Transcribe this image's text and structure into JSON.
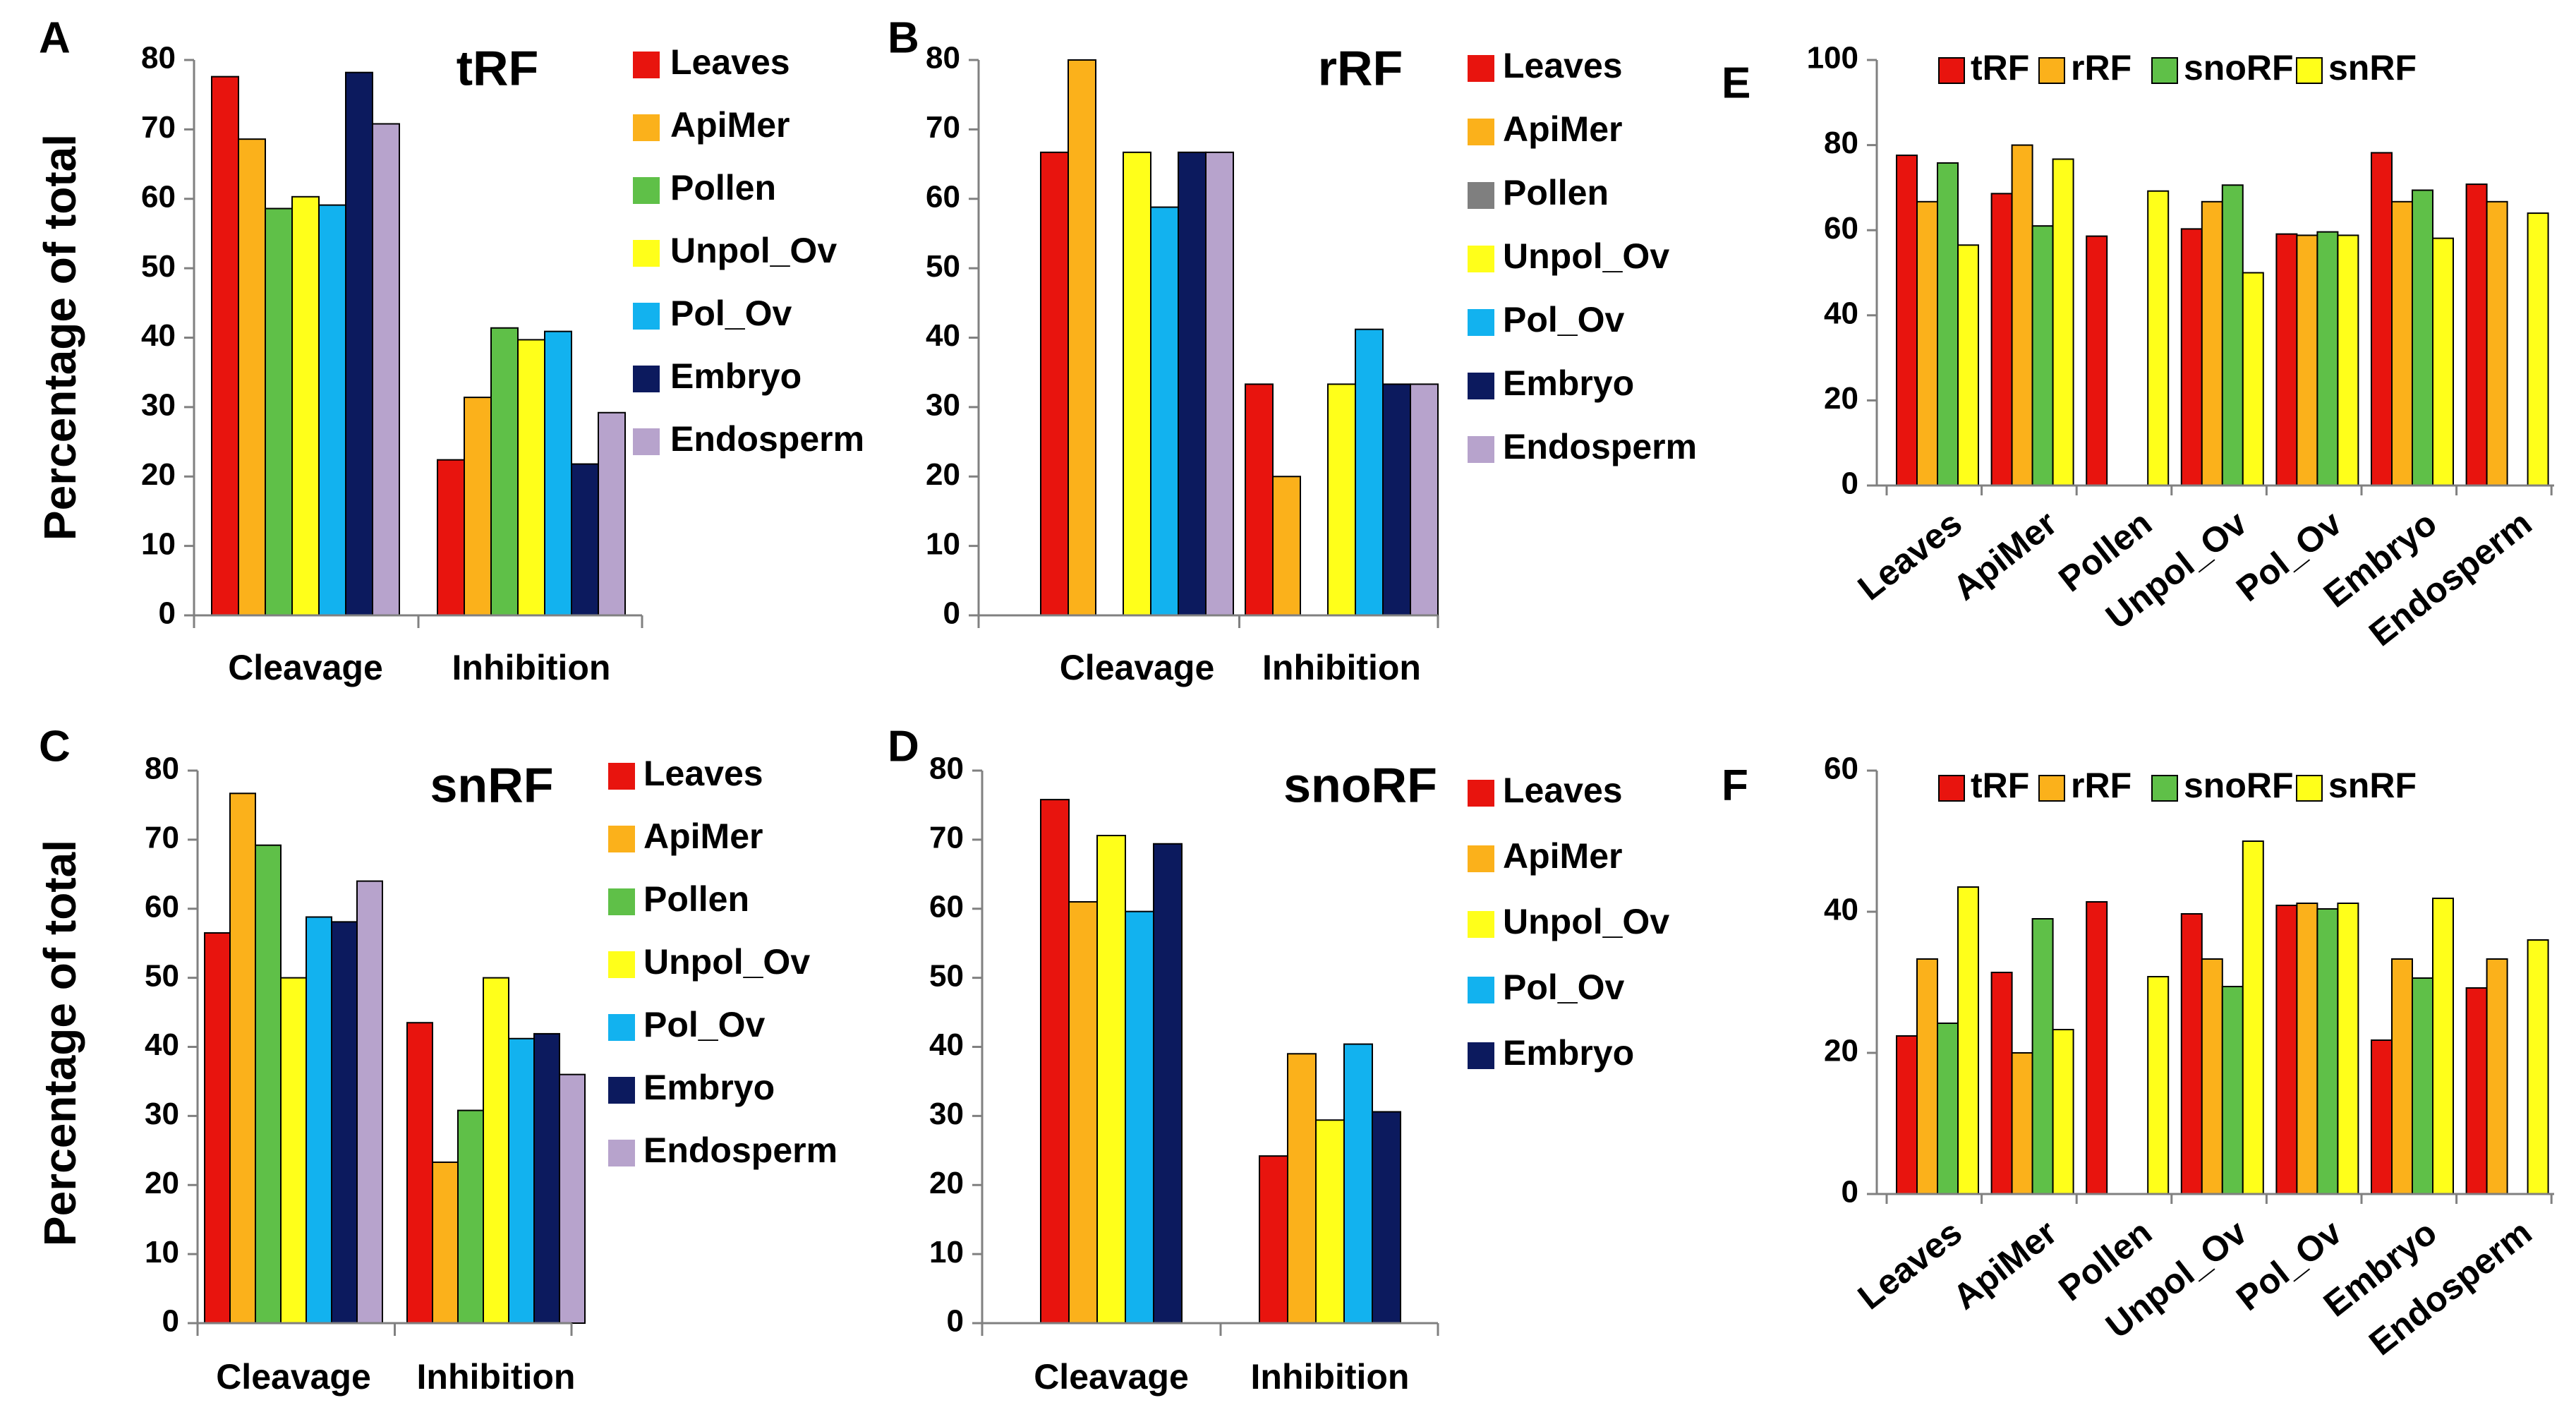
{
  "figure": {
    "ylabel": "Percentage of total"
  },
  "colors": {
    "Leaves": "#e8140e",
    "ApiMer": "#fbb11b",
    "Pollen": "#5fc048",
    "Pollen_gray": "#7f7f7f",
    "Unpol_Ov": "#ffff1a",
    "Pol_Ov": "#12b2ef",
    "Embryo": "#0c1a5e",
    "Endosperm": "#b7a3cc",
    "tRF": "#e8140e",
    "rRF": "#fbb11b",
    "snoRF": "#5fc048",
    "snRF": "#ffff1a"
  },
  "chart_data": [
    {
      "id": "A",
      "panel_label": "A",
      "type": "bar",
      "title": "tRF",
      "ylabel": "Percentage of total",
      "ylim": [
        0,
        80
      ],
      "yticks": [
        "0",
        "10",
        "20",
        "30",
        "40",
        "50",
        "60",
        "70",
        "80"
      ],
      "categories": [
        "Cleavage",
        "Inhibition"
      ],
      "series": [
        {
          "name": "Leaves",
          "color": "#e8140e",
          "values": [
            77.6,
            22.4
          ]
        },
        {
          "name": "ApiMer",
          "color": "#fbb11b",
          "values": [
            68.6,
            31.4
          ]
        },
        {
          "name": "Pollen",
          "color": "#5fc048",
          "values": [
            58.6,
            41.4
          ]
        },
        {
          "name": "Unpol_Ov",
          "color": "#ffff1a",
          "values": [
            60.3,
            39.7
          ]
        },
        {
          "name": "Pol_Ov",
          "color": "#12b2ef",
          "values": [
            59.1,
            40.9
          ]
        },
        {
          "name": "Embryo",
          "color": "#0c1a5e",
          "values": [
            78.2,
            21.8
          ]
        },
        {
          "name": "Endosperm",
          "color": "#b7a3cc",
          "values": [
            70.8,
            29.2
          ]
        }
      ]
    },
    {
      "id": "B",
      "panel_label": "B",
      "type": "bar",
      "title": "rRF",
      "ylim": [
        0,
        80
      ],
      "yticks": [
        "0",
        "10",
        "20",
        "30",
        "40",
        "50",
        "60",
        "70",
        "80"
      ],
      "categories": [
        "Cleavage",
        "Inhibition"
      ],
      "series": [
        {
          "name": "Leaves",
          "color": "#e8140e",
          "values": [
            66.7,
            33.3
          ]
        },
        {
          "name": "ApiMer",
          "color": "#fbb11b",
          "values": [
            80.0,
            20.0
          ]
        },
        {
          "name": "Pollen",
          "color": "#7f7f7f",
          "values": [
            0,
            0
          ]
        },
        {
          "name": "Unpol_Ov",
          "color": "#ffff1a",
          "values": [
            66.7,
            33.3
          ]
        },
        {
          "name": "Pol_Ov",
          "color": "#12b2ef",
          "values": [
            58.8,
            41.2
          ]
        },
        {
          "name": "Embryo",
          "color": "#0c1a5e",
          "values": [
            66.7,
            33.3
          ]
        },
        {
          "name": "Endosperm",
          "color": "#b7a3cc",
          "values": [
            66.7,
            33.3
          ]
        }
      ]
    },
    {
      "id": "C",
      "panel_label": "C",
      "type": "bar",
      "title": "snRF",
      "ylabel": "Percentage of total",
      "ylim": [
        0,
        80
      ],
      "yticks": [
        "0",
        "10",
        "20",
        "30",
        "40",
        "50",
        "60",
        "70",
        "80"
      ],
      "categories": [
        "Cleavage",
        "Inhibition"
      ],
      "series": [
        {
          "name": "Leaves",
          "color": "#e8140e",
          "values": [
            56.5,
            43.5
          ]
        },
        {
          "name": "ApiMer",
          "color": "#fbb11b",
          "values": [
            76.7,
            23.3
          ]
        },
        {
          "name": "Pollen",
          "color": "#5fc048",
          "values": [
            69.2,
            30.8
          ]
        },
        {
          "name": "Unpol_Ov",
          "color": "#ffff1a",
          "values": [
            50.0,
            50.0
          ]
        },
        {
          "name": "Pol_Ov",
          "color": "#12b2ef",
          "values": [
            58.8,
            41.2
          ]
        },
        {
          "name": "Embryo",
          "color": "#0c1a5e",
          "values": [
            58.1,
            41.9
          ]
        },
        {
          "name": "Endosperm",
          "color": "#b7a3cc",
          "values": [
            64.0,
            36.0
          ]
        }
      ]
    },
    {
      "id": "D",
      "panel_label": "D",
      "type": "bar",
      "title": "snoRF",
      "ylim": [
        0,
        80
      ],
      "yticks": [
        "0",
        "10",
        "20",
        "30",
        "40",
        "50",
        "60",
        "70",
        "80"
      ],
      "categories": [
        "Cleavage",
        "Inhibition"
      ],
      "series": [
        {
          "name": "Leaves",
          "color": "#e8140e",
          "values": [
            75.8,
            24.2
          ]
        },
        {
          "name": "ApiMer",
          "color": "#fbb11b",
          "values": [
            61.0,
            39.0
          ]
        },
        {
          "name": "Unpol_Ov",
          "color": "#ffff1a",
          "values": [
            70.6,
            29.4
          ]
        },
        {
          "name": "Pol_Ov",
          "color": "#12b2ef",
          "values": [
            59.6,
            40.4
          ]
        },
        {
          "name": "Embryo",
          "color": "#0c1a5e",
          "values": [
            69.4,
            30.6
          ]
        }
      ]
    },
    {
      "id": "E",
      "panel_label": "E",
      "type": "bar",
      "title": "",
      "ylim": [
        0,
        100
      ],
      "yticks": [
        "0",
        "20",
        "40",
        "60",
        "80",
        "100"
      ],
      "categories": [
        "Leaves",
        "ApiMer",
        "Pollen",
        "Unpol_Ov",
        "Pol_Ov",
        "Embryo",
        "Endosperm"
      ],
      "series": [
        {
          "name": "tRF",
          "color": "#e8140e",
          "values": [
            77.6,
            68.6,
            58.6,
            60.3,
            59.1,
            78.2,
            70.8
          ]
        },
        {
          "name": "rRF",
          "color": "#fbb11b",
          "values": [
            66.7,
            80.0,
            0,
            66.7,
            58.8,
            66.7,
            66.7
          ]
        },
        {
          "name": "snoRF",
          "color": "#5fc048",
          "values": [
            75.8,
            61.0,
            0,
            70.6,
            59.6,
            69.4,
            0
          ]
        },
        {
          "name": "snRF",
          "color": "#ffff1a",
          "values": [
            56.5,
            76.7,
            69.2,
            50.0,
            58.8,
            58.1,
            64.0
          ]
        }
      ]
    },
    {
      "id": "F",
      "panel_label": "F",
      "type": "bar",
      "title": "",
      "ylim": [
        0,
        60
      ],
      "yticks": [
        "0",
        "20",
        "40",
        "60"
      ],
      "categories": [
        "Leaves",
        "ApiMer",
        "Pollen",
        "Unpol_Ov",
        "Pol_Ov",
        "Embryo",
        "Endosperm"
      ],
      "series": [
        {
          "name": "tRF",
          "color": "#e8140e",
          "values": [
            22.4,
            31.4,
            41.4,
            39.7,
            40.9,
            21.8,
            29.2
          ]
        },
        {
          "name": "rRF",
          "color": "#fbb11b",
          "values": [
            33.3,
            20.0,
            0,
            33.3,
            41.2,
            33.3,
            33.3
          ]
        },
        {
          "name": "snoRF",
          "color": "#5fc048",
          "values": [
            24.2,
            39.0,
            0,
            29.4,
            40.4,
            30.6,
            0
          ]
        },
        {
          "name": "snRF",
          "color": "#ffff1a",
          "values": [
            43.5,
            23.3,
            30.8,
            50.0,
            41.2,
            41.9,
            36.0
          ]
        }
      ]
    }
  ]
}
